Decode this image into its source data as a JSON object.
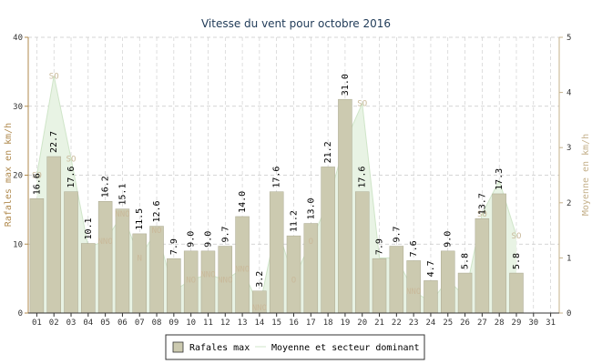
{
  "chart_data": {
    "type": "bar",
    "title": "Vitesse du vent pour octobre 2016",
    "ylabel": "Rafales max en km/h",
    "y2label": "Moyenne en km/h",
    "ylim": [
      0,
      40
    ],
    "y2lim": [
      0,
      5
    ],
    "yticks": [
      "0",
      "10",
      "20",
      "30",
      "40"
    ],
    "y2ticks": [
      "0",
      "1",
      "2",
      "3",
      "4",
      "5"
    ],
    "categories": [
      "01",
      "02",
      "03",
      "04",
      "05",
      "06",
      "07",
      "08",
      "09",
      "10",
      "11",
      "12",
      "13",
      "14",
      "15",
      "16",
      "17",
      "18",
      "19",
      "20",
      "21",
      "22",
      "23",
      "24",
      "25",
      "26",
      "27",
      "28",
      "29",
      "30",
      "31"
    ],
    "gusts": [
      16.6,
      22.7,
      17.6,
      10.1,
      16.2,
      15.1,
      11.5,
      12.6,
      7.9,
      9.0,
      9.0,
      9.7,
      14.0,
      3.2,
      17.6,
      11.2,
      13.0,
      21.2,
      31.0,
      17.6,
      7.9,
      9.7,
      7.6,
      4.7,
      9.0,
      5.8,
      13.7,
      17.3,
      5.8,
      null,
      null
    ],
    "gust_labels": [
      "16.6",
      "22.7",
      "17.6",
      "10.1",
      "16.2",
      "15.1",
      "11.5",
      "12.6",
      "7.9",
      "9.0",
      "9.0",
      "9.7",
      "14.0",
      "3.2",
      "17.6",
      "11.2",
      "13.0",
      "21.2",
      "31.0",
      "17.6",
      "7.9",
      "9.7",
      "7.6",
      "4.7",
      "9.0",
      "5.8",
      "13.7",
      "17.3",
      "5.8",
      "",
      ""
    ],
    "mean": [
      2.5,
      4.3,
      2.8,
      1.2,
      1.3,
      1.8,
      1.0,
      1.5,
      0.4,
      0.6,
      0.7,
      0.6,
      0.8,
      0.1,
      1.6,
      0.6,
      1.3,
      2.0,
      3.1,
      3.8,
      1.0,
      1.0,
      0.4,
      0.2,
      0.6,
      0.3,
      1.8,
      2.4,
      1.4,
      null,
      null
    ],
    "sectors": [
      "SO",
      "SO",
      "SO",
      "",
      "NNO",
      "NNO",
      "N",
      "NO",
      "",
      "NO",
      "NNO",
      "NNO",
      "NNO",
      "NNO",
      "",
      "O",
      "O",
      "",
      "",
      "SO",
      "",
      "",
      "NNO",
      "",
      "",
      "",
      "SO",
      "",
      "SO",
      "",
      ""
    ],
    "legend": [
      {
        "name": "Rafales max"
      },
      {
        "name": "Moyenne et secteur dominant"
      }
    ],
    "colors": {
      "bar": "#cccab0",
      "mean_fill": "#e8f3e4",
      "mean_line": "#cfe5c8",
      "grid": "#c8c8c8",
      "title": "#1f3a57"
    }
  }
}
